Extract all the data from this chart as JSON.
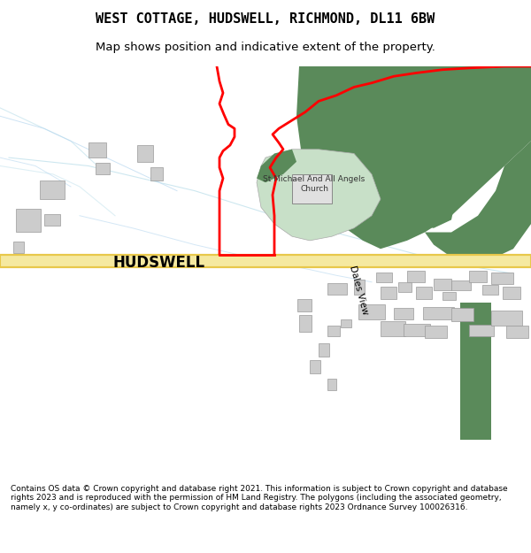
{
  "title": "WEST COTTAGE, HUDSWELL, RICHMOND, DL11 6BW",
  "subtitle": "Map shows position and indicative extent of the property.",
  "footer": "Contains OS data © Crown copyright and database right 2021. This information is subject to Crown copyright and database rights 2023 and is reproduced with the permission of HM Land Registry. The polygons (including the associated geometry, namely x, y co-ordinates) are subject to Crown copyright and database rights 2023 Ordnance Survey 100026316.",
  "bg_color": "#f8f8f5",
  "map_bg": "#f2f1ec",
  "road_color": "#f5e9a0",
  "road_border": "#e8c84a",
  "green_dark": "#5a8a5a",
  "green_light": "#8fba8f",
  "church_ground": "#c8e0c8",
  "building_color": "#cccccc",
  "red_line": "#ff0000",
  "water_color": "#b8d8e8",
  "stream_color": "#add8e6",
  "hudswell_label": "HUDSWELL",
  "dales_view_label": "Dales View",
  "church_label": "St Michael And All Angels\nChurch"
}
